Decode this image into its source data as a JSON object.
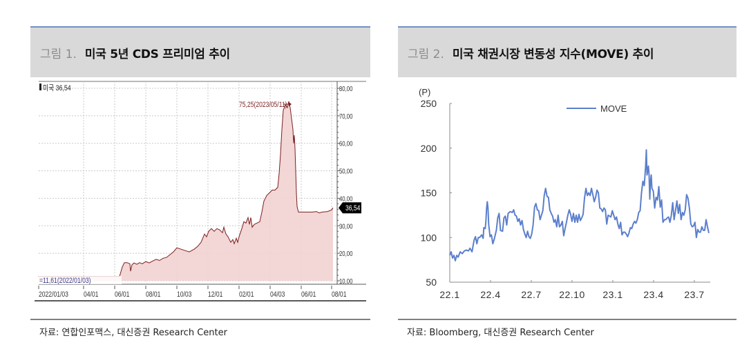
{
  "figure1": {
    "number": "그림 1.",
    "title": "미국 5년 CDS 프리미엄 추이",
    "source": "자료: 연합인포맥스, 대신증권 Research Center"
  },
  "figure2": {
    "number": "그림 2.",
    "title": "미국 채권시장 변동성 지수(MOVE) 추이",
    "source": "자료: Bloomberg, 대신증권 Research Center"
  },
  "colors": {
    "title_bar_bg": "#d9d9d9",
    "title_bar_top_border": "#7090c8",
    "cds_line": "#7a1f1f",
    "cds_fill": "#f2d2d2",
    "move_line": "#5b7fcc",
    "current_value_tag_bg": "#000000"
  },
  "chart_data": [
    {
      "type": "area",
      "title": "미국 5년 CDS 프리미엄 추이",
      "legend": "미국 36,54",
      "series_name": "미국",
      "current_value_label": "36,54",
      "max_annotation": "75,25(2023/05/11)",
      "min_annotation": "11,61(2022/01/03)",
      "xlabel": "",
      "ylabel": "",
      "ylim": [
        10,
        80
      ],
      "y_ticks": [
        "80,00",
        "70,00",
        "60,00",
        "50,00",
        "40,00",
        "30,00",
        "20,00",
        "10,00"
      ],
      "x_ticks": [
        "2022/01/03",
        "04/01",
        "06/01",
        "08/01",
        "10/03",
        "12/01",
        "02/01",
        "04/03",
        "06/01",
        "08/01"
      ],
      "grid": true,
      "y_axis_position": "right",
      "x": [
        "2022-01",
        "2022-02",
        "2022-03",
        "2022-04",
        "2022-05",
        "2022-06",
        "2022-07",
        "2022-08",
        "2022-09",
        "2022-10",
        "2022-11",
        "2022-12",
        "2023-01",
        "2023-02",
        "2023-03",
        "2023-04",
        "2023-05",
        "2023-06",
        "2023-07",
        "2023-08"
      ],
      "values": [
        11.6,
        11.6,
        16.5,
        15.5,
        16.5,
        17.5,
        21.5,
        20.5,
        22.5,
        28.5,
        27.5,
        23.5,
        29.5,
        33.5,
        41.0,
        46.0,
        75.25,
        35.0,
        35.0,
        36.54
      ]
    },
    {
      "type": "line",
      "title": "미국 채권시장 변동성 지수(MOVE) 추이",
      "ylabel": "(P)",
      "xlabel": "",
      "legend": [
        "MOVE"
      ],
      "legend_position": "top-right",
      "ylim": [
        50,
        250
      ],
      "y_ticks": [
        250,
        200,
        150,
        100,
        50
      ],
      "x_ticks": [
        "22.1",
        "22.4",
        "22.7",
        "22.10",
        "23.1",
        "23.4",
        "23.7"
      ],
      "grid": false,
      "x": [
        "22.1",
        "22.2",
        "22.3",
        "22.4",
        "22.5",
        "22.6",
        "22.7",
        "22.8",
        "22.9",
        "22.10",
        "22.11",
        "22.12",
        "23.1",
        "23.2",
        "23.3",
        "23.4",
        "23.5",
        "23.6",
        "23.7",
        "23.8"
      ],
      "series": [
        {
          "name": "MOVE",
          "values": [
            80,
            88,
            110,
            125,
            128,
            104,
            140,
            120,
            130,
            150,
            130,
            112,
            100,
            130,
            198,
            130,
            128,
            112,
            110,
            122
          ]
        }
      ]
    }
  ]
}
